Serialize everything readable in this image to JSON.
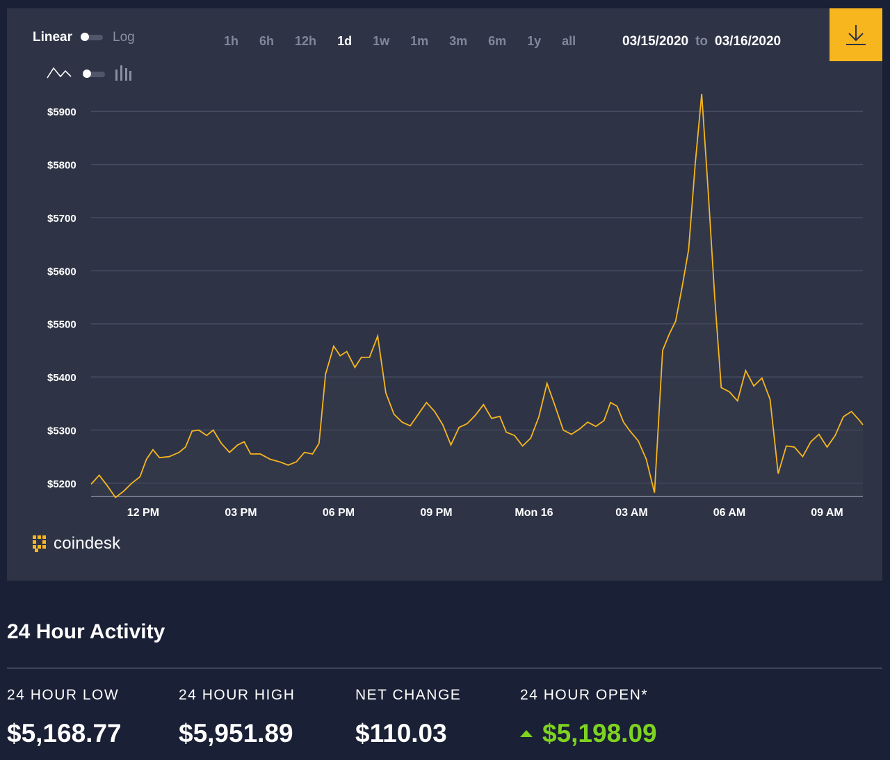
{
  "controls": {
    "scale_linear": "Linear",
    "scale_log": "Log",
    "ranges": [
      "1h",
      "6h",
      "12h",
      "1d",
      "1w",
      "1m",
      "3m",
      "6m",
      "1y",
      "all"
    ],
    "active_range": "1d",
    "date_from": "03/15/2020",
    "date_to_sep": "to",
    "date_to": "03/16/2020",
    "download_icon": "download-icon"
  },
  "brand": {
    "name": "coindesk",
    "accent": "#f7b61d"
  },
  "chart_data": {
    "type": "area",
    "line_color": "#f7b61d",
    "grid": true,
    "ylim": [
      5175,
      5950
    ],
    "y_ticks": [
      5200,
      5300,
      5400,
      5500,
      5600,
      5700,
      5800,
      5900
    ],
    "y_tick_labels": [
      "$5200",
      "$5300",
      "$5400",
      "$5500",
      "$5600",
      "$5700",
      "$5800",
      "$5900"
    ],
    "x_range_hours": [
      10.4,
      34.1
    ],
    "x_ticks": [
      {
        "h": 12,
        "label": "12 PM"
      },
      {
        "h": 15,
        "label": "03 PM"
      },
      {
        "h": 18,
        "label": "06 PM"
      },
      {
        "h": 21,
        "label": "09 PM"
      },
      {
        "h": 24,
        "label": "Mon 16"
      },
      {
        "h": 27,
        "label": "03 AM"
      },
      {
        "h": 30,
        "label": "06 AM"
      },
      {
        "h": 33,
        "label": "09 AM"
      }
    ],
    "series": [
      {
        "points": [
          [
            10.4,
            5198
          ],
          [
            10.65,
            5215
          ],
          [
            10.9,
            5195
          ],
          [
            11.15,
            5173
          ],
          [
            11.4,
            5185
          ],
          [
            11.65,
            5200
          ],
          [
            11.9,
            5212
          ],
          [
            12.1,
            5245
          ],
          [
            12.3,
            5263
          ],
          [
            12.5,
            5248
          ],
          [
            12.8,
            5250
          ],
          [
            13.1,
            5258
          ],
          [
            13.3,
            5268
          ],
          [
            13.5,
            5298
          ],
          [
            13.7,
            5300
          ],
          [
            13.95,
            5290
          ],
          [
            14.15,
            5300
          ],
          [
            14.4,
            5275
          ],
          [
            14.65,
            5258
          ],
          [
            14.9,
            5272
          ],
          [
            15.1,
            5278
          ],
          [
            15.3,
            5255
          ],
          [
            15.6,
            5255
          ],
          [
            15.9,
            5245
          ],
          [
            16.2,
            5240
          ],
          [
            16.45,
            5234
          ],
          [
            16.7,
            5240
          ],
          [
            16.95,
            5258
          ],
          [
            17.2,
            5255
          ],
          [
            17.4,
            5275
          ],
          [
            17.6,
            5405
          ],
          [
            17.85,
            5458
          ],
          [
            18.05,
            5440
          ],
          [
            18.25,
            5448
          ],
          [
            18.5,
            5418
          ],
          [
            18.7,
            5437
          ],
          [
            18.95,
            5437
          ],
          [
            19.2,
            5477
          ],
          [
            19.45,
            5370
          ],
          [
            19.7,
            5330
          ],
          [
            19.95,
            5315
          ],
          [
            20.2,
            5308
          ],
          [
            20.45,
            5330
          ],
          [
            20.7,
            5352
          ],
          [
            20.95,
            5335
          ],
          [
            21.2,
            5310
          ],
          [
            21.45,
            5272
          ],
          [
            21.7,
            5305
          ],
          [
            21.95,
            5312
          ],
          [
            22.2,
            5328
          ],
          [
            22.45,
            5348
          ],
          [
            22.7,
            5322
          ],
          [
            22.95,
            5326
          ],
          [
            23.15,
            5296
          ],
          [
            23.4,
            5290
          ],
          [
            23.65,
            5270
          ],
          [
            23.9,
            5285
          ],
          [
            24.15,
            5325
          ],
          [
            24.4,
            5388
          ],
          [
            24.65,
            5345
          ],
          [
            24.9,
            5300
          ],
          [
            25.15,
            5292
          ],
          [
            25.4,
            5302
          ],
          [
            25.65,
            5315
          ],
          [
            25.9,
            5307
          ],
          [
            26.15,
            5318
          ],
          [
            26.35,
            5352
          ],
          [
            26.55,
            5345
          ],
          [
            26.75,
            5315
          ],
          [
            26.95,
            5298
          ],
          [
            27.2,
            5280
          ],
          [
            27.45,
            5245
          ],
          [
            27.7,
            5182
          ],
          [
            27.95,
            5450
          ],
          [
            28.15,
            5480
          ],
          [
            28.35,
            5505
          ],
          [
            28.55,
            5570
          ],
          [
            28.75,
            5640
          ],
          [
            28.95,
            5800
          ],
          [
            29.15,
            5933
          ],
          [
            29.35,
            5750
          ],
          [
            29.55,
            5550
          ],
          [
            29.75,
            5380
          ],
          [
            30.0,
            5372
          ],
          [
            30.25,
            5355
          ],
          [
            30.5,
            5412
          ],
          [
            30.75,
            5383
          ],
          [
            31.0,
            5398
          ],
          [
            31.25,
            5358
          ],
          [
            31.5,
            5218
          ],
          [
            31.75,
            5270
          ],
          [
            32.0,
            5268
          ],
          [
            32.25,
            5250
          ],
          [
            32.5,
            5278
          ],
          [
            32.75,
            5292
          ],
          [
            33.0,
            5268
          ],
          [
            33.25,
            5290
          ],
          [
            33.5,
            5325
          ],
          [
            33.75,
            5335
          ],
          [
            34.0,
            5318
          ],
          [
            34.1,
            5310
          ]
        ]
      }
    ]
  },
  "activity": {
    "title": "24 Hour Activity",
    "stats": [
      {
        "label": "24 HOUR LOW",
        "value": "$5,168.77"
      },
      {
        "label": "24 HOUR HIGH",
        "value": "$5,951.89"
      },
      {
        "label": "NET CHANGE",
        "value": "$110.03"
      },
      {
        "label": "24 HOUR OPEN*",
        "value": "$5,198.09",
        "trend": "up",
        "color": "#7ed321"
      }
    ]
  }
}
